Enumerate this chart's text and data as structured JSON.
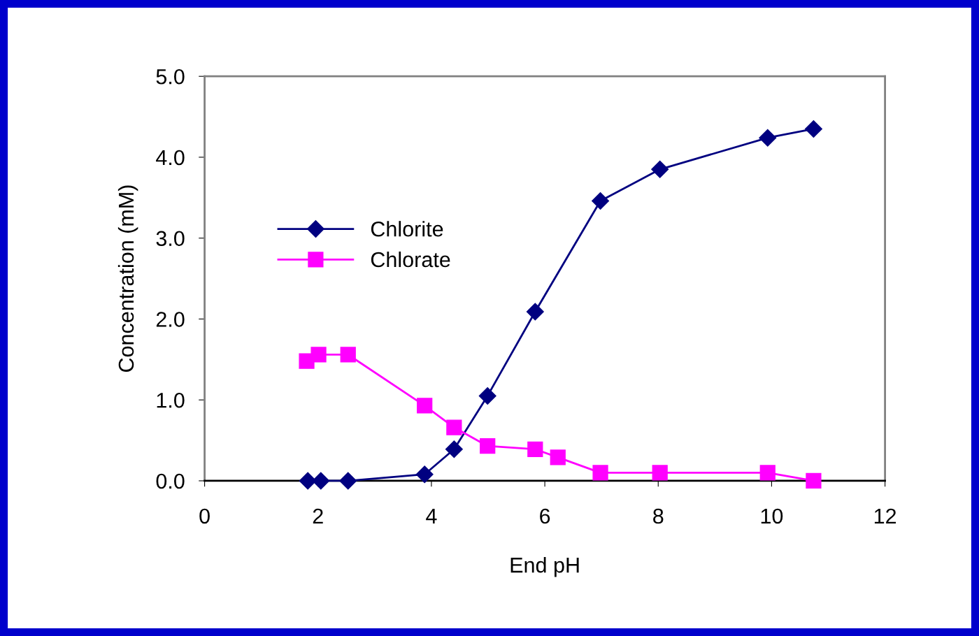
{
  "chart_data": {
    "type": "line",
    "xlabel": "End pH",
    "ylabel": "Concentration (mM)",
    "xlim": [
      0,
      12
    ],
    "xticks": [
      0,
      2,
      4,
      6,
      8,
      10,
      12
    ],
    "ylim": [
      0,
      5
    ],
    "yticks": [
      {
        "value": 0,
        "label": "0.0"
      },
      {
        "value": 1,
        "label": "1.0"
      },
      {
        "value": 2,
        "label": "2.0"
      },
      {
        "value": 3,
        "label": "3.0"
      },
      {
        "value": 4,
        "label": "4.0"
      },
      {
        "value": 5,
        "label": "5.0"
      }
    ],
    "grid": false,
    "legend": "left",
    "series": [
      {
        "name": "Chlorite",
        "color": "#000080",
        "marker": "diamond",
        "x": [
          1.82,
          2.05,
          2.53,
          3.88,
          4.4,
          4.99,
          5.83,
          6.98,
          8.03,
          9.93,
          10.74
        ],
        "values": [
          0,
          0,
          0,
          0.08,
          0.39,
          1.05,
          2.09,
          3.46,
          3.85,
          4.24,
          4.35
        ]
      },
      {
        "name": "Chlorate",
        "color": "#ff00ff",
        "marker": "square",
        "x": [
          1.8,
          2.01,
          2.53,
          3.88,
          4.4,
          4.99,
          5.83,
          6.23,
          6.98,
          8.03,
          9.93,
          10.74
        ],
        "values": [
          1.48,
          1.56,
          1.56,
          0.93,
          0.66,
          0.43,
          0.39,
          0.29,
          0.1,
          0.1,
          0.1,
          0.0
        ]
      }
    ]
  }
}
